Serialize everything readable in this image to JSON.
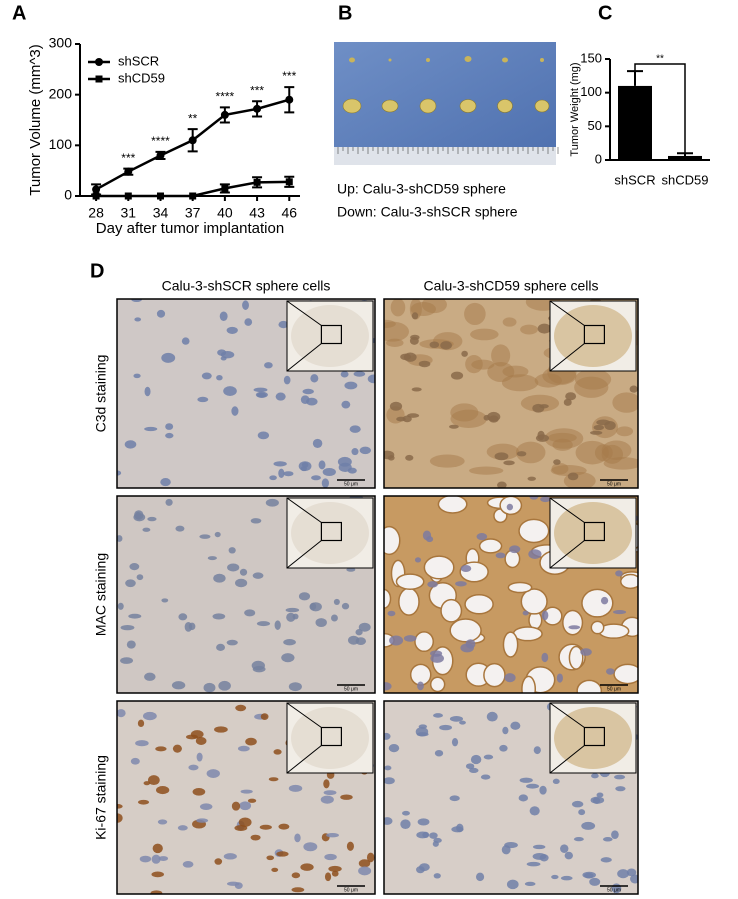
{
  "panel_labels": [
    "A",
    "B",
    "C",
    "D"
  ],
  "chart_data": [
    {
      "type": "line",
      "xlabel": "Day after tumor implantation",
      "ylabel": "Tumor Volume (mm^3)",
      "x": [
        28,
        31,
        34,
        37,
        40,
        43,
        46
      ],
      "xlim": [
        26.5,
        47
      ],
      "xticks": [
        28,
        31,
        34,
        37,
        40,
        43,
        46
      ],
      "ylim": [
        0,
        300
      ],
      "yticks": [
        0,
        100,
        200,
        300
      ],
      "series": [
        {
          "name": "shSCR",
          "color": "#000000",
          "marker": "circle",
          "values": [
            13,
            48,
            80,
            110,
            160,
            172,
            190
          ],
          "errors": [
            10,
            6,
            7,
            22,
            15,
            15,
            25
          ]
        },
        {
          "name": "shCD59",
          "color": "#000000",
          "marker": "square",
          "values": [
            0,
            0,
            0,
            0,
            15,
            27,
            28
          ],
          "errors": [
            0,
            0,
            0,
            0,
            8,
            10,
            10
          ]
        }
      ],
      "annotations": [
        {
          "x": 31,
          "text": "***"
        },
        {
          "x": 34,
          "text": "****"
        },
        {
          "x": 37,
          "text": "**"
        },
        {
          "x": 40,
          "text": "****"
        },
        {
          "x": 43,
          "text": "***"
        },
        {
          "x": 46,
          "text": "***"
        }
      ]
    },
    {
      "type": "bar",
      "ylabel": "Tumor Weight (mg)",
      "categories": [
        "shSCR",
        "shCD59"
      ],
      "values": [
        110,
        6
      ],
      "errors": [
        22,
        4
      ],
      "color": "#000000",
      "ylim": [
        0,
        150
      ],
      "yticks": [
        0,
        50,
        100,
        150
      ],
      "significance": "**"
    }
  ],
  "photo": {
    "captions": [
      "Up: Calu-3-shCD59 sphere",
      "Down: Calu-3-shSCR sphere"
    ]
  },
  "micrographs": {
    "columns": [
      "Calu-3-shSCR sphere cells",
      "Calu-3-shCD59 sphere cells"
    ],
    "rows": [
      "C3d staining",
      "MAC staining",
      "Ki-67 staining"
    ],
    "scale_bar": "50 μm"
  }
}
